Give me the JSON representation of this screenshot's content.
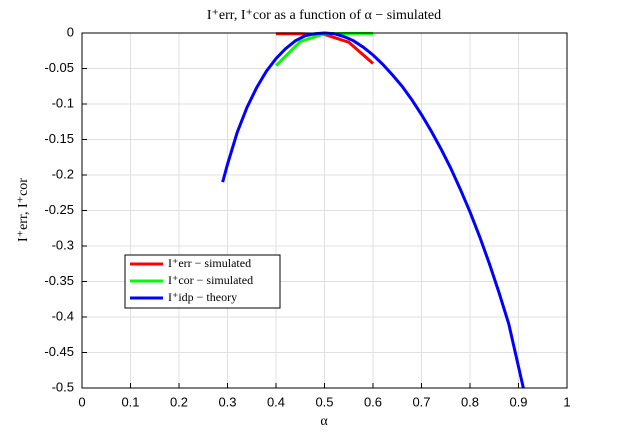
{
  "chart_data": {
    "type": "line",
    "title": "I⁺err, I⁺cor as a function of α − simulated",
    "x_label": "α",
    "y_label": "I⁺err, I⁺cor",
    "xlim": [
      0,
      1
    ],
    "xticks": [
      0,
      0.1,
      0.2,
      0.3,
      0.4,
      0.5,
      0.6,
      0.7,
      0.8,
      0.9,
      1
    ],
    "ylim": [
      -0.5,
      0
    ],
    "yticks": [
      -0.5,
      -0.45,
      -0.4,
      -0.35,
      -0.3,
      -0.25,
      -0.2,
      -0.15,
      -0.1,
      -0.05,
      0
    ],
    "grid": true,
    "legend": "lower-left",
    "series": [
      {
        "name": "I⁺err − simulated",
        "color": "#ff0000",
        "x": [
          0.4,
          0.45,
          0.5,
          0.55,
          0.6
        ],
        "values": [
          -0.001,
          -0.001,
          -0.002,
          -0.013,
          -0.043
        ]
      },
      {
        "name": "I⁺cor − simulated",
        "color": "#00ff00",
        "x": [
          0.4,
          0.45,
          0.5,
          0.55,
          0.6
        ],
        "values": [
          -0.046,
          -0.012,
          -0.001,
          -0.0005,
          -0.0005
        ]
      },
      {
        "name": "I⁺idp − theory",
        "color": "#0000ff",
        "x": [
          0.29,
          0.3,
          0.32,
          0.34,
          0.36,
          0.38,
          0.4,
          0.42,
          0.44,
          0.46,
          0.48,
          0.5,
          0.52,
          0.54,
          0.56,
          0.58,
          0.6,
          0.62,
          0.64,
          0.66,
          0.68,
          0.7,
          0.72,
          0.74,
          0.76,
          0.78,
          0.8,
          0.82,
          0.84,
          0.86,
          0.88,
          0.9,
          0.91
        ],
        "values": [
          -0.21,
          -0.185,
          -0.14,
          -0.105,
          -0.077,
          -0.054,
          -0.036,
          -0.022,
          -0.011,
          -0.004,
          -0.001,
          0,
          -0.001,
          -0.005,
          -0.011,
          -0.02,
          -0.031,
          -0.044,
          -0.059,
          -0.075,
          -0.094,
          -0.115,
          -0.138,
          -0.163,
          -0.19,
          -0.22,
          -0.252,
          -0.287,
          -0.325,
          -0.366,
          -0.41,
          -0.47,
          -0.5
        ]
      }
    ]
  }
}
